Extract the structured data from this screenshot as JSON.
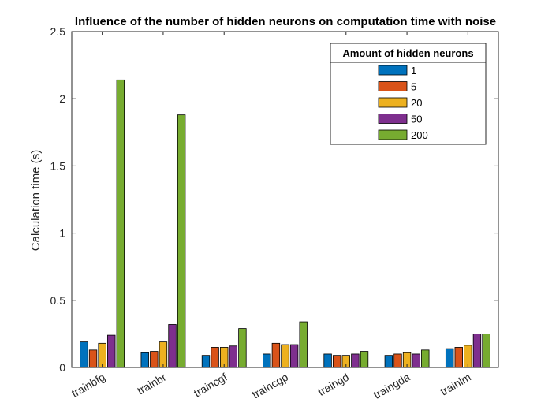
{
  "chart_data": {
    "type": "bar",
    "title": "Influence of the number of hidden neurons on computation time with noise",
    "xlabel": "",
    "ylabel": "Calculation time (s)",
    "ylim": [
      0,
      2.5
    ],
    "yticks": [
      0,
      0.5,
      1,
      1.5,
      2,
      2.5
    ],
    "ytick_labels": [
      "0",
      "0.5",
      "1",
      "1.5",
      "2",
      "2.5"
    ],
    "categories": [
      "trainbfg",
      "trainbr",
      "traincgf",
      "traincgp",
      "traingd",
      "traingda",
      "trainlm"
    ],
    "series": [
      {
        "name": "1",
        "color": "#0072BD",
        "values": [
          0.19,
          0.11,
          0.09,
          0.1,
          0.1,
          0.09,
          0.14
        ]
      },
      {
        "name": "5",
        "color": "#D95319",
        "values": [
          0.13,
          0.12,
          0.15,
          0.18,
          0.09,
          0.1,
          0.15
        ]
      },
      {
        "name": "20",
        "color": "#EDB120",
        "values": [
          0.18,
          0.19,
          0.15,
          0.17,
          0.09,
          0.11,
          0.165
        ]
      },
      {
        "name": "50",
        "color": "#7E2F8E",
        "values": [
          0.24,
          0.32,
          0.16,
          0.17,
          0.1,
          0.1,
          0.25
        ]
      },
      {
        "name": "200",
        "color": "#77AC30",
        "values": [
          2.14,
          1.88,
          0.29,
          0.34,
          0.12,
          0.13,
          0.25
        ]
      }
    ],
    "legend": {
      "title": "Amount of hidden neurons",
      "position": "top-right"
    },
    "grid": false
  }
}
